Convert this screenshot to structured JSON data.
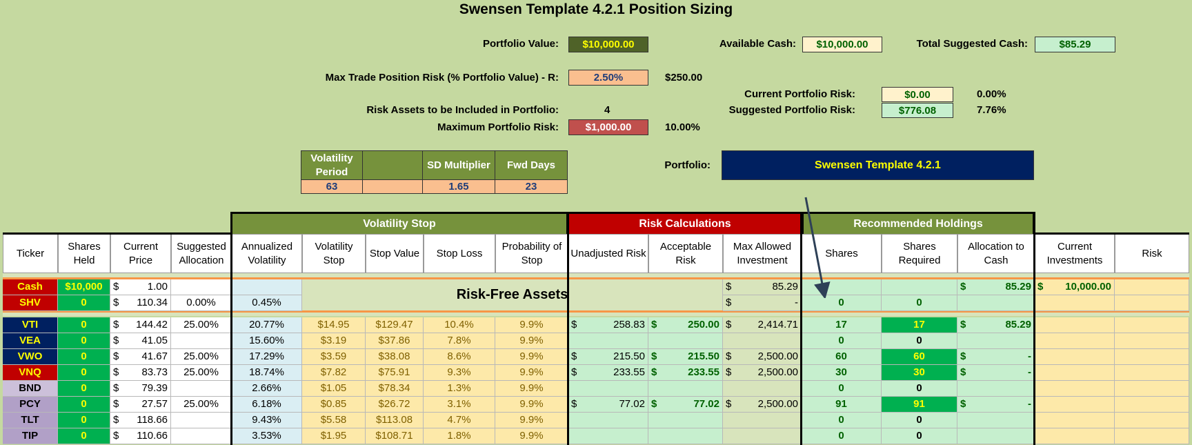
{
  "title": "Swensen Template 4.2.1 Position Sizing",
  "top": {
    "portfolio_value_label": "Portfolio Value:",
    "portfolio_value": "$10,000.00",
    "available_cash_label": "Available Cash:",
    "available_cash": "$10,000.00",
    "total_suggested_cash_label": "Total Suggested Cash:",
    "total_suggested_cash": "$85.29",
    "max_trade_risk_label": "Max Trade Position Risk (% Portfolio Value) - R:",
    "max_trade_risk_pct": "2.50%",
    "max_trade_risk_amt": "$250.00",
    "current_portfolio_risk_label": "Current Portfolio Risk:",
    "current_portfolio_risk": "$0.00",
    "current_portfolio_risk_pct": "0.00%",
    "risk_assets_label": "Risk Assets to be Included in Portfolio:",
    "risk_assets_count": "4",
    "suggested_portfolio_risk_label": "Suggested Portfolio Risk:",
    "suggested_portfolio_risk": "$776.08",
    "suggested_portfolio_risk_pct": "7.76%",
    "max_portfolio_risk_label": "Maximum Portfolio Risk:",
    "max_portfolio_risk": "$1,000.00",
    "max_portfolio_risk_pct": "10.00%",
    "portfolio_label": "Portfolio:",
    "portfolio_name": "Swensen Template 4.2.1"
  },
  "params": {
    "volatility_period_label": "Volatility Period",
    "volatility_period": "63",
    "sd_multiplier_label": "SD Multiplier",
    "sd_multiplier": "1.65",
    "fwd_days_label": "Fwd Days",
    "fwd_days": "23"
  },
  "groups": {
    "volatility_stop": "Volatility Stop",
    "risk_calculations": "Risk Calculations",
    "recommended_holdings": "Recommended Holdings"
  },
  "columns": [
    "Ticker",
    "Shares Held",
    "Current Price",
    "Suggested Allocation",
    "Annualized Volatility",
    "Volatility Stop",
    "Stop Value",
    "Stop Loss",
    "Probability of Stop",
    "Unadjusted Risk",
    "Acceptable Risk",
    "Max Allowed Investment",
    "Shares",
    "Shares Required",
    "Allocation to Cash",
    "Current Investments",
    "Risk"
  ],
  "risk_free_label": "Risk-Free Assets",
  "cash_row": {
    "ticker": "Cash",
    "held": "$10,000",
    "price": "1.00",
    "max_allowed": "85.29",
    "alloc_cash": "85.29",
    "current_inv": "10,000.00"
  },
  "shv_row": {
    "ticker": "SHV",
    "held": "0",
    "price": "110.34",
    "alloc": "0.00%",
    "vol": "0.45%",
    "max_allowed": "-",
    "shares": "0",
    "req": "0"
  },
  "rows": [
    {
      "ticker": "VTI",
      "held": "0",
      "price": "144.42",
      "alloc": "25.00%",
      "vol": "20.77%",
      "vstop": "$14.95",
      "stopval": "$129.47",
      "stoploss": "10.4%",
      "prob": "9.9%",
      "unadj": "258.83",
      "accept": "250.00",
      "maxinv": "2,414.71",
      "shares": "17",
      "req": "17",
      "cash": "85.29"
    },
    {
      "ticker": "VEA",
      "held": "0",
      "price": "41.05",
      "alloc": "",
      "vol": "15.60%",
      "vstop": "$3.19",
      "stopval": "$37.86",
      "stoploss": "7.8%",
      "prob": "9.9%",
      "unadj": "",
      "accept": "",
      "maxinv": "",
      "shares": "0",
      "req": "0",
      "cash": ""
    },
    {
      "ticker": "VWO",
      "held": "0",
      "price": "41.67",
      "alloc": "25.00%",
      "vol": "17.29%",
      "vstop": "$3.59",
      "stopval": "$38.08",
      "stoploss": "8.6%",
      "prob": "9.9%",
      "unadj": "215.50",
      "accept": "215.50",
      "maxinv": "2,500.00",
      "shares": "60",
      "req": "60",
      "cash": "-"
    },
    {
      "ticker": "VNQ",
      "held": "0",
      "price": "83.73",
      "alloc": "25.00%",
      "vol": "18.74%",
      "vstop": "$7.82",
      "stopval": "$75.91",
      "stoploss": "9.3%",
      "prob": "9.9%",
      "unadj": "233.55",
      "accept": "233.55",
      "maxinv": "2,500.00",
      "shares": "30",
      "req": "30",
      "cash": "-"
    },
    {
      "ticker": "BND",
      "held": "0",
      "price": "79.39",
      "alloc": "",
      "vol": "2.66%",
      "vstop": "$1.05",
      "stopval": "$78.34",
      "stoploss": "1.3%",
      "prob": "9.9%",
      "unadj": "",
      "accept": "",
      "maxinv": "",
      "shares": "0",
      "req": "0",
      "cash": ""
    },
    {
      "ticker": "PCY",
      "held": "0",
      "price": "27.57",
      "alloc": "25.00%",
      "vol": "6.18%",
      "vstop": "$0.85",
      "stopval": "$26.72",
      "stoploss": "3.1%",
      "prob": "9.9%",
      "unadj": "77.02",
      "accept": "77.02",
      "maxinv": "2,500.00",
      "shares": "91",
      "req": "91",
      "cash": "-"
    },
    {
      "ticker": "TLT",
      "held": "0",
      "price": "118.66",
      "alloc": "",
      "vol": "9.43%",
      "vstop": "$5.58",
      "stopval": "$113.08",
      "stoploss": "4.7%",
      "prob": "9.9%",
      "unadj": "",
      "accept": "",
      "maxinv": "",
      "shares": "0",
      "req": "0",
      "cash": ""
    },
    {
      "ticker": "TIP",
      "held": "0",
      "price": "110.66",
      "alloc": "",
      "vol": "3.53%",
      "vstop": "$1.95",
      "stopval": "$108.71",
      "stoploss": "1.8%",
      "prob": "9.9%",
      "unadj": "",
      "accept": "",
      "maxinv": "",
      "shares": "0",
      "req": "0",
      "cash": ""
    }
  ],
  "ticker_colors": {
    "VTI": "#002060",
    "VEA": "#002060",
    "VWO": "#002060",
    "VNQ": "#c00000",
    "BND": "#ccc0da",
    "PCY": "#b1a0c7",
    "TLT": "#b1a0c7",
    "TIP": "#b1a0c7",
    "Cash": "#c00000",
    "SHV": "#c00000"
  },
  "colors": {
    "background": "#c5d9a0",
    "olive": "#76923c",
    "red": "#c00000",
    "navy": "#002060",
    "light_blue": "#daeef3",
    "light_yellow": "#fde9a9",
    "light_green": "#c6efce",
    "bright_green": "#00b050",
    "orange": "#fabf8f"
  }
}
